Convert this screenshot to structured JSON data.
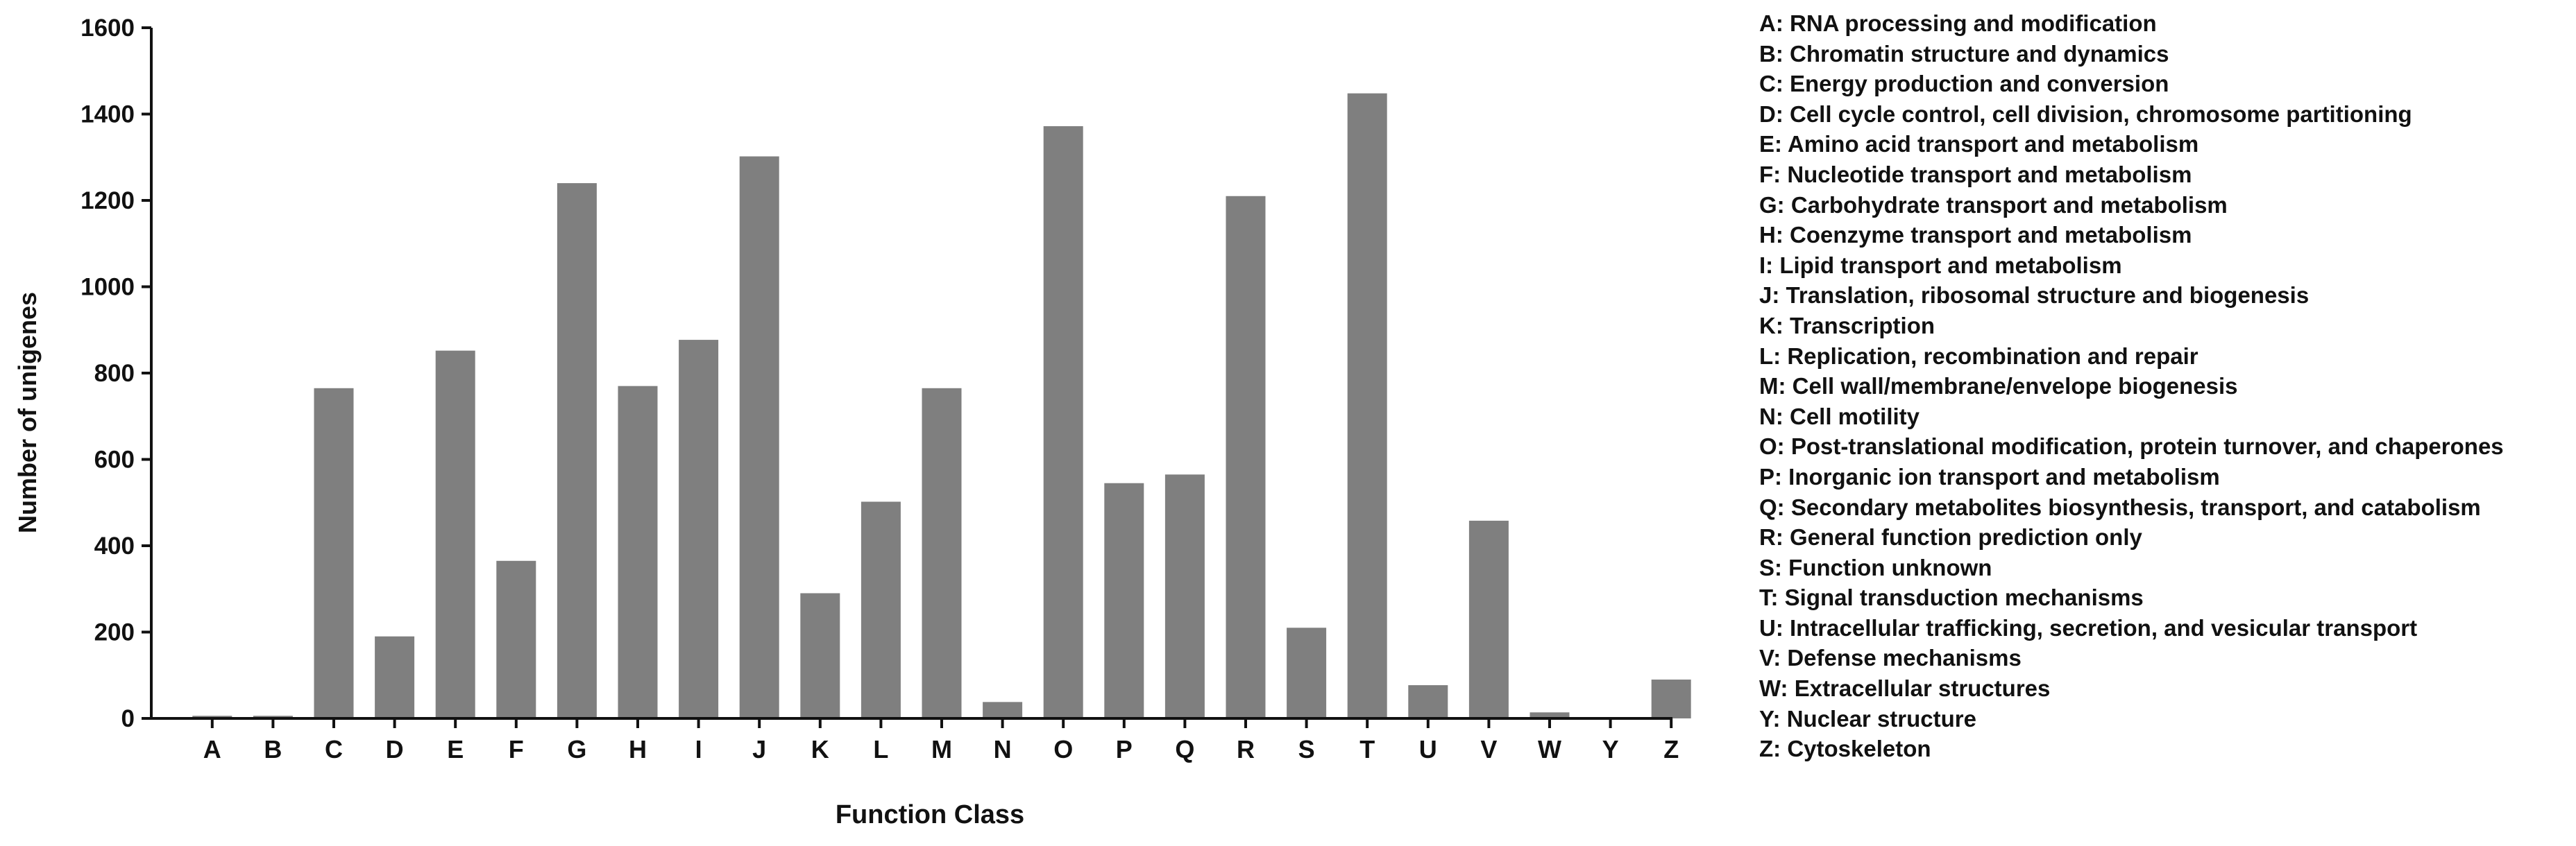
{
  "chart_data": {
    "type": "bar",
    "xlabel": "Function Class",
    "ylabel": "Number of unigenes",
    "ylim": [
      0,
      1600
    ],
    "yticks": [
      0,
      200,
      400,
      600,
      800,
      1000,
      1200,
      1400,
      1600
    ],
    "grid": false,
    "legend_placement": "right",
    "bar_color": "#7f7f7f",
    "categories": [
      "A",
      "B",
      "C",
      "D",
      "E",
      "F",
      "G",
      "H",
      "I",
      "J",
      "K",
      "L",
      "M",
      "N",
      "O",
      "P",
      "Q",
      "R",
      "S",
      "T",
      "U",
      "V",
      "W",
      "Y",
      "Z"
    ],
    "values": [
      6,
      6,
      765,
      190,
      852,
      365,
      1240,
      770,
      877,
      1302,
      290,
      502,
      765,
      38,
      1372,
      545,
      565,
      1210,
      210,
      1448,
      77,
      458,
      14,
      3,
      90
    ],
    "legend": [
      "A: RNA processing and modification",
      "B: Chromatin structure and dynamics",
      "C: Energy production and conversion",
      "D: Cell cycle control, cell division, chromosome partitioning",
      "E: Amino acid transport and metabolism",
      "F: Nucleotide transport and metabolism",
      "G: Carbohydrate transport and metabolism",
      "H: Coenzyme transport and metabolism",
      "I: Lipid transport and metabolism",
      "J: Translation, ribosomal structure and biogenesis",
      "K: Transcription",
      "L: Replication, recombination and repair",
      "M: Cell wall/membrane/envelope biogenesis",
      "N: Cell motility",
      "O: Post-translational modification, protein turnover, and chaperones",
      "P: Inorganic ion transport and metabolism",
      "Q: Secondary metabolites biosynthesis, transport, and catabolism",
      "R: General function prediction only",
      "S: Function unknown",
      "T: Signal transduction mechanisms",
      "U: Intracellular trafficking, secretion, and vesicular transport",
      "V: Defense mechanisms",
      "W: Extracellular structures",
      "Y: Nuclear structure",
      "Z: Cytoskeleton"
    ]
  }
}
